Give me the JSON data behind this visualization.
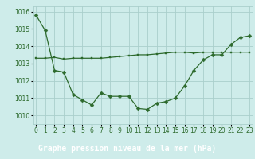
{
  "line1_x": [
    0,
    1,
    2,
    3,
    4,
    5,
    6,
    7,
    8,
    9,
    10,
    11,
    12,
    13,
    14,
    15,
    16,
    17,
    18,
    19,
    20,
    21,
    22,
    23
  ],
  "line1_y": [
    1015.8,
    1014.9,
    1012.6,
    1012.5,
    1011.2,
    1010.9,
    1010.6,
    1011.3,
    1011.1,
    1011.1,
    1011.1,
    1010.4,
    1010.35,
    1010.7,
    1010.8,
    1011.0,
    1011.7,
    1012.6,
    1013.2,
    1013.5,
    1013.5,
    1014.1,
    1014.5,
    1014.6
  ],
  "line2_x": [
    0,
    1,
    2,
    3,
    4,
    5,
    6,
    7,
    8,
    9,
    10,
    11,
    12,
    13,
    14,
    15,
    16,
    17,
    18,
    19,
    20,
    21,
    22,
    23
  ],
  "line2_y": [
    1013.3,
    1013.3,
    1013.35,
    1013.25,
    1013.3,
    1013.3,
    1013.3,
    1013.3,
    1013.35,
    1013.4,
    1013.45,
    1013.5,
    1013.5,
    1013.55,
    1013.6,
    1013.65,
    1013.65,
    1013.6,
    1013.65,
    1013.65,
    1013.65,
    1013.65,
    1013.65,
    1013.65
  ],
  "line_color": "#2d6a2d",
  "bg_color": "#ceecea",
  "grid_color": "#aacfcc",
  "xlabel": "Graphe pression niveau de la mer (hPa)",
  "xlabel_bg": "#2d6a2d",
  "xlabel_color": "#ffffff",
  "ylim": [
    1009.5,
    1016.3
  ],
  "yticks": [
    1010,
    1011,
    1012,
    1013,
    1014,
    1015,
    1016
  ],
  "xticks": [
    0,
    1,
    2,
    3,
    4,
    5,
    6,
    7,
    8,
    9,
    10,
    11,
    12,
    13,
    14,
    15,
    16,
    17,
    18,
    19,
    20,
    21,
    22,
    23
  ],
  "tick_fontsize": 5.5,
  "xlabel_fontsize": 7,
  "marker_size1": 2.5,
  "marker_size2": 1.8,
  "lw": 0.9
}
